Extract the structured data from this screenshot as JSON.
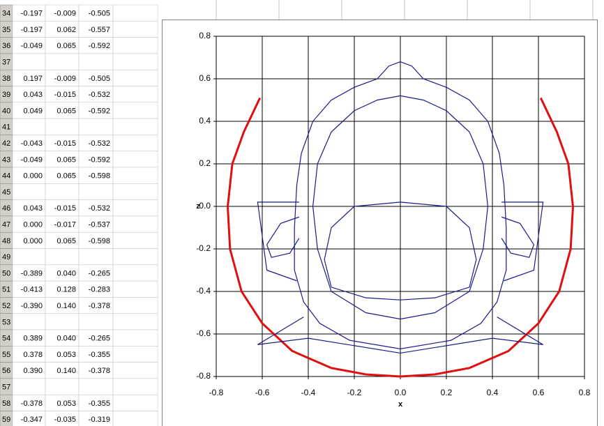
{
  "sheet": {
    "rows": [
      {
        "num": "34",
        "cells": [
          "-0.197",
          "-0.009",
          "-0.505"
        ]
      },
      {
        "num": "35",
        "cells": [
          "-0.197",
          "0.062",
          "-0.557"
        ]
      },
      {
        "num": "36",
        "cells": [
          "-0.049",
          "0.065",
          "-0.592"
        ]
      },
      {
        "num": "37"
      },
      {
        "num": "38",
        "cells": [
          "0.197",
          "-0.009",
          "-0.505"
        ]
      },
      {
        "num": "39",
        "cells": [
          "0.043",
          "-0.015",
          "-0.532"
        ]
      },
      {
        "num": "40",
        "cells": [
          "0.049",
          "0.065",
          "-0.592"
        ]
      },
      {
        "num": "41"
      },
      {
        "num": "42",
        "cells": [
          "-0.043",
          "-0.015",
          "-0.532"
        ]
      },
      {
        "num": "43",
        "cells": [
          "-0.049",
          "0.065",
          "-0.592"
        ]
      },
      {
        "num": "44",
        "cells": [
          "0.000",
          "0.065",
          "-0.598"
        ]
      },
      {
        "num": "45"
      },
      {
        "num": "46",
        "cells": [
          "0.043",
          "-0.015",
          "-0.532"
        ]
      },
      {
        "num": "47",
        "cells": [
          "0.000",
          "-0.017",
          "-0.537"
        ]
      },
      {
        "num": "48",
        "cells": [
          "0.000",
          "0.065",
          "-0.598"
        ]
      },
      {
        "num": "49"
      },
      {
        "num": "50",
        "cells": [
          "-0.389",
          "0.040",
          "-0.265"
        ]
      },
      {
        "num": "51",
        "cells": [
          "-0.413",
          "0.128",
          "-0.283"
        ]
      },
      {
        "num": "52",
        "cells": [
          "-0.390",
          "0.140",
          "-0.378"
        ]
      },
      {
        "num": "53"
      },
      {
        "num": "54",
        "cells": [
          "0.389",
          "0.040",
          "-0.265"
        ]
      },
      {
        "num": "55",
        "cells": [
          "0.378",
          "0.053",
          "-0.355"
        ]
      },
      {
        "num": "56",
        "cells": [
          "0.390",
          "0.140",
          "-0.378"
        ]
      },
      {
        "num": "57"
      },
      {
        "num": "58",
        "cells": [
          "-0.378",
          "0.053",
          "-0.355"
        ]
      },
      {
        "num": "59",
        "cells": [
          "-0.347",
          "-0.035",
          "-0.319"
        ]
      }
    ]
  },
  "chart_data": {
    "type": "line",
    "x_label": "x",
    "y_label": "z",
    "xlim": [
      -0.8,
      0.8
    ],
    "ylim": [
      -0.8,
      0.8
    ],
    "xticks": [
      -0.8,
      -0.6,
      -0.4,
      -0.2,
      {
        "value": 0,
        "label": "0.0"
      },
      0.2,
      0.4,
      0.6,
      0.8
    ],
    "yticks": [
      -0.8,
      -0.6,
      -0.4,
      -0.2,
      {
        "value": 0,
        "label": "0.0"
      },
      0.2,
      0.4,
      0.6,
      0.8
    ],
    "grid": true,
    "series": [
      {
        "color": "#e01010",
        "x": [
          -0.61,
          -0.68,
          -0.73,
          -0.75,
          -0.74,
          -0.69,
          -0.6,
          -0.47,
          -0.3,
          -0.15,
          0,
          0.15,
          0.3,
          0.47,
          0.6,
          0.69,
          0.74,
          0.75,
          0.73,
          0.68,
          0.61
        ],
        "values": [
          0.51,
          0.35,
          0.2,
          0,
          -0.2,
          -0.4,
          -0.55,
          -0.68,
          -0.76,
          -0.79,
          -0.8,
          -0.79,
          -0.76,
          -0.68,
          -0.55,
          -0.4,
          -0.2,
          0,
          0.2,
          0.35,
          0.51
        ]
      },
      {
        "color": "#1a1a8c",
        "x": [
          0,
          -0.05,
          -0.1,
          -0.2,
          -0.3,
          -0.38,
          -0.43,
          -0.45,
          -0.46,
          -0.46,
          -0.42,
          -0.35,
          -0.22,
          0,
          0.22,
          0.35,
          0.42,
          0.46,
          0.46,
          0.45,
          0.43,
          0.38,
          0.3,
          0.2,
          0.1,
          0.05,
          0
        ],
        "values": [
          0.68,
          0.66,
          0.6,
          0.56,
          0.5,
          0.4,
          0.25,
          0.1,
          -0.1,
          -0.3,
          -0.45,
          -0.55,
          -0.63,
          -0.67,
          -0.63,
          -0.55,
          -0.45,
          -0.3,
          -0.1,
          0.1,
          0.25,
          0.4,
          0.5,
          0.56,
          0.6,
          0.66,
          0.68
        ]
      },
      {
        "color": "#1a1a8c",
        "x": [
          0,
          -0.1,
          -0.2,
          -0.3,
          -0.36,
          -0.38,
          -0.36,
          -0.3,
          -0.15,
          0,
          0.15,
          0.3,
          0.36,
          0.38,
          0.36,
          0.3,
          0.2,
          0.1,
          0
        ],
        "values": [
          0.52,
          0.5,
          0.45,
          0.35,
          0.2,
          0,
          -0.2,
          -0.4,
          -0.5,
          -0.53,
          -0.5,
          -0.4,
          -0.2,
          0,
          0.2,
          0.35,
          0.45,
          0.5,
          0.52
        ]
      },
      {
        "color": "#1a1a8c",
        "x": [
          0,
          -0.2,
          -0.3,
          -0.33,
          -0.3,
          -0.15,
          0,
          0.15,
          0.3,
          0.33,
          0.3,
          0.2,
          0
        ],
        "values": [
          0.02,
          0,
          -0.1,
          -0.25,
          -0.38,
          -0.43,
          -0.44,
          -0.43,
          -0.38,
          -0.25,
          -0.1,
          0,
          0.02
        ]
      },
      {
        "color": "#1a1a8c",
        "x": [
          -0.44,
          -0.62,
          -0.58,
          -0.45
        ],
        "values": [
          0.02,
          0.02,
          -0.3,
          -0.35
        ]
      },
      {
        "color": "#1a1a8c",
        "x": [
          0.44,
          0.62,
          0.58,
          0.45
        ],
        "values": [
          0.02,
          0.02,
          -0.3,
          -0.35
        ]
      },
      {
        "color": "#1a1a8c",
        "x": [
          -0.44,
          -0.52,
          -0.58,
          -0.56,
          -0.48,
          -0.44
        ],
        "values": [
          -0.05,
          -0.08,
          -0.18,
          -0.24,
          -0.22,
          -0.15
        ]
      },
      {
        "color": "#1a1a8c",
        "x": [
          0.44,
          0.52,
          0.58,
          0.56,
          0.48,
          0.44
        ],
        "values": [
          -0.05,
          -0.08,
          -0.18,
          -0.24,
          -0.22,
          -0.15
        ]
      },
      {
        "color": "#1a1a8c",
        "x": [
          -0.42,
          -0.62,
          -0.4,
          0,
          0.4,
          0.62,
          0.42
        ],
        "values": [
          -0.52,
          -0.65,
          -0.62,
          -0.69,
          -0.62,
          -0.65,
          -0.52
        ]
      }
    ]
  }
}
